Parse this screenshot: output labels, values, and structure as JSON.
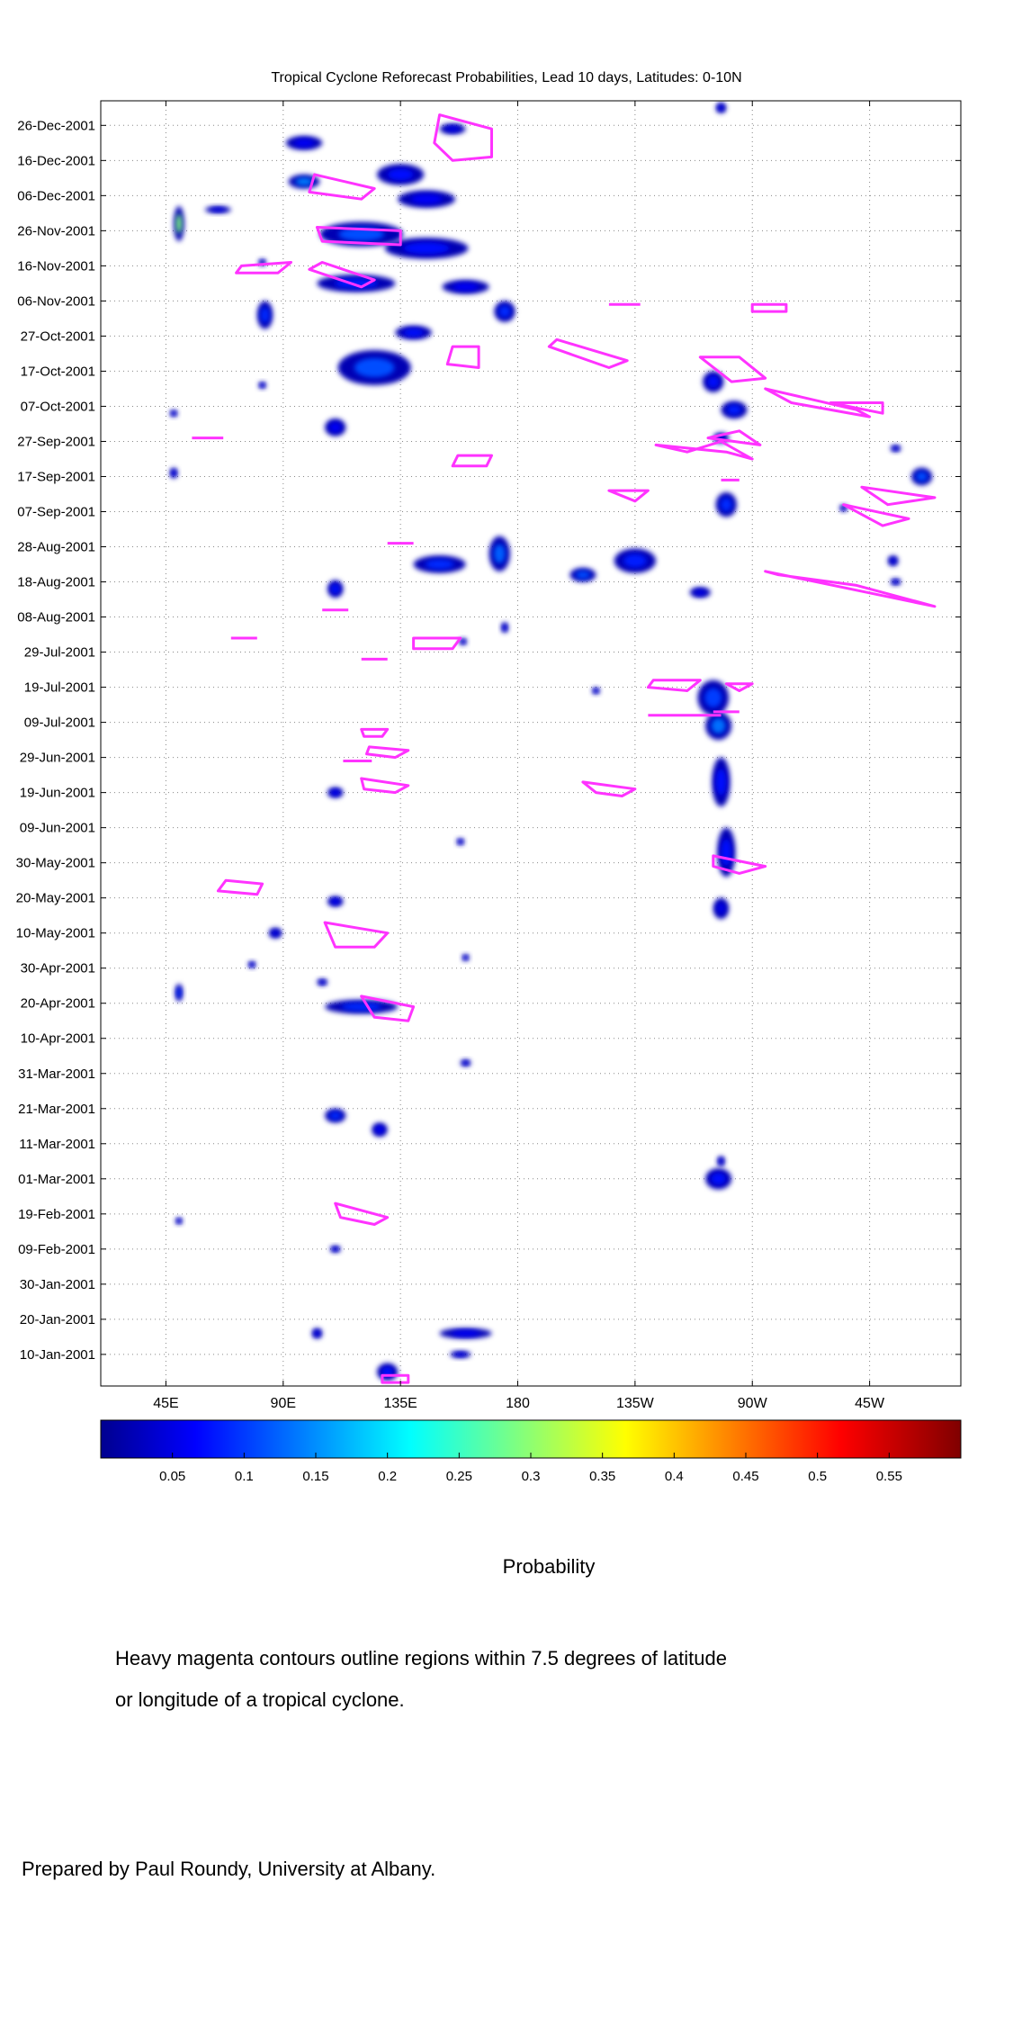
{
  "chart_data": {
    "type": "heatmap",
    "title": "Tropical Cyclone Reforecast Probabilities, Lead 10 days, Latitudes: 0-10N",
    "x_ticks": [
      "45E",
      "90E",
      "135E",
      "180",
      "135W",
      "90W",
      "45W"
    ],
    "x_tick_values": [
      45,
      90,
      135,
      180,
      225,
      270,
      315
    ],
    "xlim": [
      20,
      350
    ],
    "y_ticks": [
      "26-Dec-2001",
      "16-Dec-2001",
      "06-Dec-2001",
      "26-Nov-2001",
      "16-Nov-2001",
      "06-Nov-2001",
      "27-Oct-2001",
      "17-Oct-2001",
      "07-Oct-2001",
      "27-Sep-2001",
      "17-Sep-2001",
      "07-Sep-2001",
      "28-Aug-2001",
      "18-Aug-2001",
      "08-Aug-2001",
      "29-Jul-2001",
      "19-Jul-2001",
      "09-Jul-2001",
      "29-Jun-2001",
      "19-Jun-2001",
      "09-Jun-2001",
      "30-May-2001",
      "20-May-2001",
      "10-May-2001",
      "30-Apr-2001",
      "20-Apr-2001",
      "10-Apr-2001",
      "31-Mar-2001",
      "21-Mar-2001",
      "11-Mar-2001",
      "01-Mar-2001",
      "19-Feb-2001",
      "09-Feb-2001",
      "30-Jan-2001",
      "20-Jan-2001",
      "10-Jan-2001"
    ],
    "y_tick_values": [
      359,
      349,
      339,
      329,
      319,
      309,
      299,
      289,
      279,
      269,
      259,
      249,
      239,
      229,
      219,
      209,
      199,
      189,
      179,
      169,
      159,
      149,
      139,
      129,
      119,
      109,
      99,
      89,
      79,
      69,
      59,
      49,
      39,
      29,
      19,
      9
    ],
    "ylim": [
      0,
      366
    ],
    "grid": "dotted",
    "colorbar": {
      "label": "Probability",
      "ticks": [
        "0.05",
        "0.1",
        "0.15",
        "0.2",
        "0.25",
        "0.3",
        "0.35",
        "0.4",
        "0.45",
        "0.5",
        "0.55"
      ],
      "tick_values": [
        0.05,
        0.1,
        0.15,
        0.2,
        0.25,
        0.3,
        0.35,
        0.4,
        0.45,
        0.5,
        0.55
      ],
      "range": [
        0.0,
        0.6
      ],
      "colormap": "jet"
    },
    "probability_regions": [
      {
        "lon": 98,
        "day": 354,
        "dlon": 14,
        "dday": 4,
        "p": 0.07
      },
      {
        "lon": 135,
        "day": 345,
        "dlon": 18,
        "dday": 6,
        "p": 0.08
      },
      {
        "lon": 145,
        "day": 338,
        "dlon": 22,
        "dday": 5,
        "p": 0.07
      },
      {
        "lon": 155,
        "day": 358,
        "dlon": 10,
        "dday": 3,
        "p": 0.06
      },
      {
        "lon": 258,
        "day": 364,
        "dlon": 4,
        "dday": 3,
        "p": 0.06
      },
      {
        "lon": 50,
        "day": 331,
        "dlon": 4,
        "dday": 10,
        "p": 0.3
      },
      {
        "lon": 65,
        "day": 335,
        "dlon": 10,
        "dday": 2,
        "p": 0.06
      },
      {
        "lon": 98,
        "day": 343,
        "dlon": 12,
        "dday": 4,
        "p": 0.15
      },
      {
        "lon": 120,
        "day": 328,
        "dlon": 32,
        "dday": 7,
        "p": 0.12
      },
      {
        "lon": 145,
        "day": 324,
        "dlon": 32,
        "dday": 6,
        "p": 0.08
      },
      {
        "lon": 118,
        "day": 314,
        "dlon": 30,
        "dday": 5,
        "p": 0.09
      },
      {
        "lon": 160,
        "day": 313,
        "dlon": 18,
        "dday": 4,
        "p": 0.07
      },
      {
        "lon": 175,
        "day": 306,
        "dlon": 8,
        "dday": 6,
        "p": 0.1
      },
      {
        "lon": 83,
        "day": 305,
        "dlon": 6,
        "dday": 8,
        "p": 0.1
      },
      {
        "lon": 82,
        "day": 320,
        "dlon": 3,
        "dday": 2,
        "p": 0.06
      },
      {
        "lon": 125,
        "day": 290,
        "dlon": 28,
        "dday": 10,
        "p": 0.12
      },
      {
        "lon": 140,
        "day": 300,
        "dlon": 14,
        "dday": 4,
        "p": 0.08
      },
      {
        "lon": 110,
        "day": 273,
        "dlon": 8,
        "dday": 5,
        "p": 0.07
      },
      {
        "lon": 48,
        "day": 277,
        "dlon": 3,
        "dday": 2,
        "p": 0.06
      },
      {
        "lon": 82,
        "day": 285,
        "dlon": 3,
        "dday": 2,
        "p": 0.06
      },
      {
        "lon": 255,
        "day": 286,
        "dlon": 8,
        "dday": 6,
        "p": 0.08
      },
      {
        "lon": 263,
        "day": 278,
        "dlon": 10,
        "dday": 5,
        "p": 0.09
      },
      {
        "lon": 258,
        "day": 270,
        "dlon": 6,
        "dday": 3,
        "p": 0.06
      },
      {
        "lon": 325,
        "day": 267,
        "dlon": 4,
        "dday": 2,
        "p": 0.06
      },
      {
        "lon": 335,
        "day": 259,
        "dlon": 8,
        "dday": 5,
        "p": 0.12
      },
      {
        "lon": 48,
        "day": 260,
        "dlon": 3,
        "dday": 3,
        "p": 0.06
      },
      {
        "lon": 260,
        "day": 251,
        "dlon": 8,
        "dday": 7,
        "p": 0.1
      },
      {
        "lon": 305,
        "day": 250,
        "dlon": 3,
        "dday": 2,
        "p": 0.06
      },
      {
        "lon": 173,
        "day": 237,
        "dlon": 8,
        "dday": 10,
        "p": 0.13
      },
      {
        "lon": 150,
        "day": 234,
        "dlon": 20,
        "dday": 5,
        "p": 0.1
      },
      {
        "lon": 225,
        "day": 235,
        "dlon": 16,
        "dday": 7,
        "p": 0.09
      },
      {
        "lon": 205,
        "day": 231,
        "dlon": 10,
        "dday": 4,
        "p": 0.12
      },
      {
        "lon": 250,
        "day": 226,
        "dlon": 8,
        "dday": 3,
        "p": 0.06
      },
      {
        "lon": 110,
        "day": 227,
        "dlon": 6,
        "dday": 5,
        "p": 0.08
      },
      {
        "lon": 325,
        "day": 229,
        "dlon": 4,
        "dday": 2,
        "p": 0.06
      },
      {
        "lon": 324,
        "day": 235,
        "dlon": 4,
        "dday": 3,
        "p": 0.06
      },
      {
        "lon": 175,
        "day": 216,
        "dlon": 2,
        "dday": 3,
        "p": 0.06
      },
      {
        "lon": 159,
        "day": 212,
        "dlon": 3,
        "dday": 2,
        "p": 0.06
      },
      {
        "lon": 255,
        "day": 196,
        "dlon": 12,
        "dday": 10,
        "p": 0.11
      },
      {
        "lon": 257,
        "day": 188,
        "dlon": 10,
        "dday": 8,
        "p": 0.14
      },
      {
        "lon": 210,
        "day": 198,
        "dlon": 3,
        "dday": 2,
        "p": 0.06
      },
      {
        "lon": 258,
        "day": 172,
        "dlon": 7,
        "dday": 14,
        "p": 0.08
      },
      {
        "lon": 260,
        "day": 152,
        "dlon": 7,
        "dday": 14,
        "p": 0.08
      },
      {
        "lon": 258,
        "day": 136,
        "dlon": 6,
        "dday": 6,
        "p": 0.06
      },
      {
        "lon": 110,
        "day": 169,
        "dlon": 6,
        "dday": 3,
        "p": 0.07
      },
      {
        "lon": 158,
        "day": 155,
        "dlon": 3,
        "dday": 2,
        "p": 0.06
      },
      {
        "lon": 110,
        "day": 138,
        "dlon": 6,
        "dday": 3,
        "p": 0.07
      },
      {
        "lon": 87,
        "day": 129,
        "dlon": 5,
        "dday": 3,
        "p": 0.06
      },
      {
        "lon": 160,
        "day": 122,
        "dlon": 2,
        "dday": 2,
        "p": 0.06
      },
      {
        "lon": 78,
        "day": 120,
        "dlon": 3,
        "dday": 2,
        "p": 0.06
      },
      {
        "lon": 50,
        "day": 112,
        "dlon": 3,
        "dday": 5,
        "p": 0.1
      },
      {
        "lon": 120,
        "day": 108,
        "dlon": 28,
        "dday": 4,
        "p": 0.1
      },
      {
        "lon": 105,
        "day": 115,
        "dlon": 4,
        "dday": 2,
        "p": 0.06
      },
      {
        "lon": 160,
        "day": 92,
        "dlon": 4,
        "dday": 2,
        "p": 0.06
      },
      {
        "lon": 110,
        "day": 77,
        "dlon": 8,
        "dday": 4,
        "p": 0.1
      },
      {
        "lon": 127,
        "day": 73,
        "dlon": 6,
        "dday": 4,
        "p": 0.07
      },
      {
        "lon": 257,
        "day": 59,
        "dlon": 10,
        "dday": 6,
        "p": 0.08
      },
      {
        "lon": 258,
        "day": 64,
        "dlon": 3,
        "dday": 3,
        "p": 0.06
      },
      {
        "lon": 50,
        "day": 47,
        "dlon": 2,
        "dday": 2,
        "p": 0.06
      },
      {
        "lon": 110,
        "day": 39,
        "dlon": 4,
        "dday": 2,
        "p": 0.06
      },
      {
        "lon": 103,
        "day": 15,
        "dlon": 4,
        "dday": 3,
        "p": 0.06
      },
      {
        "lon": 160,
        "day": 15,
        "dlon": 20,
        "dday": 3,
        "p": 0.07
      },
      {
        "lon": 158,
        "day": 9,
        "dlon": 8,
        "dday": 2,
        "p": 0.06
      },
      {
        "lon": 130,
        "day": 4,
        "dlon": 8,
        "dday": 5,
        "p": 0.08
      }
    ],
    "tc_contours": [
      [
        [
          150,
          362
        ],
        [
          170,
          358
        ],
        [
          170,
          350
        ],
        [
          155,
          349
        ],
        [
          148,
          354
        ]
      ],
      [
        [
          102,
          345
        ],
        [
          125,
          341
        ],
        [
          120,
          338
        ],
        [
          100,
          340
        ]
      ],
      [
        [
          103,
          330
        ],
        [
          135,
          329
        ],
        [
          135,
          325
        ],
        [
          105,
          326
        ]
      ],
      [
        [
          74,
          319
        ],
        [
          93,
          320
        ],
        [
          88,
          317
        ],
        [
          72,
          317
        ]
      ],
      [
        [
          105,
          320
        ],
        [
          125,
          315
        ],
        [
          120,
          313
        ],
        [
          100,
          318
        ]
      ],
      [
        [
          250,
          293
        ],
        [
          265,
          293
        ],
        [
          275,
          287
        ],
        [
          262,
          286
        ]
      ],
      [
        [
          155,
          296
        ],
        [
          165,
          296
        ],
        [
          165,
          290
        ],
        [
          153,
          291
        ]
      ],
      [
        [
          195,
          298
        ],
        [
          222,
          292
        ],
        [
          215,
          290
        ],
        [
          192,
          296
        ]
      ],
      [
        [
          215,
          308
        ],
        [
          227,
          308
        ]
      ],
      [
        [
          270,
          308
        ],
        [
          283,
          308
        ],
        [
          283,
          306
        ],
        [
          270,
          306
        ]
      ],
      [
        [
          275,
          284
        ],
        [
          310,
          278
        ],
        [
          315,
          276
        ],
        [
          285,
          280
        ]
      ],
      [
        [
          300,
          280
        ],
        [
          320,
          280
        ],
        [
          320,
          277
        ]
      ],
      [
        [
          233,
          268
        ],
        [
          260,
          266
        ],
        [
          270,
          264
        ],
        [
          258,
          269
        ],
        [
          245,
          266
        ]
      ],
      [
        [
          253,
          270
        ],
        [
          265,
          272
        ],
        [
          273,
          268
        ]
      ],
      [
        [
          157,
          265
        ],
        [
          170,
          265
        ],
        [
          168,
          262
        ],
        [
          155,
          262
        ]
      ],
      [
        [
          55,
          270
        ],
        [
          67,
          270
        ]
      ],
      [
        [
          215,
          255
        ],
        [
          230,
          255
        ],
        [
          225,
          252
        ]
      ],
      [
        [
          258,
          258
        ],
        [
          265,
          258
        ]
      ],
      [
        [
          312,
          256
        ],
        [
          340,
          253
        ],
        [
          322,
          251
        ]
      ],
      [
        [
          305,
          251
        ],
        [
          330,
          247
        ],
        [
          320,
          245
        ]
      ],
      [
        [
          275,
          232
        ],
        [
          340,
          222
        ],
        [
          310,
          228
        ],
        [
          280,
          231
        ]
      ],
      [
        [
          140,
          213
        ],
        [
          158,
          213
        ],
        [
          155,
          210
        ],
        [
          140,
          210
        ]
      ],
      [
        [
          70,
          213
        ],
        [
          80,
          213
        ]
      ],
      [
        [
          120,
          207
        ],
        [
          130,
          207
        ]
      ],
      [
        [
          130,
          240
        ],
        [
          140,
          240
        ]
      ],
      [
        [
          105,
          221
        ],
        [
          115,
          221
        ]
      ],
      [
        [
          232,
          201
        ],
        [
          250,
          201
        ],
        [
          245,
          198
        ],
        [
          230,
          199
        ]
      ],
      [
        [
          260,
          200
        ],
        [
          270,
          200
        ],
        [
          265,
          198
        ]
      ],
      [
        [
          255,
          192
        ],
        [
          265,
          192
        ]
      ],
      [
        [
          230,
          191
        ],
        [
          258,
          191
        ]
      ],
      [
        [
          120,
          187
        ],
        [
          130,
          187
        ],
        [
          128,
          185
        ],
        [
          121,
          185
        ]
      ],
      [
        [
          123,
          182
        ],
        [
          138,
          181
        ],
        [
          133,
          179
        ],
        [
          122,
          180
        ]
      ],
      [
        [
          113,
          178
        ],
        [
          124,
          178
        ]
      ],
      [
        [
          205,
          172
        ],
        [
          225,
          170
        ],
        [
          220,
          168
        ],
        [
          210,
          169
        ]
      ],
      [
        [
          120,
          173
        ],
        [
          138,
          171
        ],
        [
          133,
          169
        ],
        [
          121,
          170
        ]
      ],
      [
        [
          255,
          151
        ],
        [
          275,
          148
        ],
        [
          265,
          146
        ],
        [
          255,
          148
        ]
      ],
      [
        [
          68,
          144
        ],
        [
          82,
          143
        ],
        [
          80,
          140
        ],
        [
          65,
          141
        ]
      ],
      [
        [
          106,
          132
        ],
        [
          130,
          129
        ],
        [
          125,
          125
        ],
        [
          110,
          125
        ]
      ],
      [
        [
          120,
          111
        ],
        [
          140,
          108
        ],
        [
          138,
          104
        ],
        [
          125,
          105
        ]
      ],
      [
        [
          128,
          3
        ],
        [
          138,
          3
        ],
        [
          138,
          1
        ],
        [
          128,
          1
        ]
      ],
      [
        [
          110,
          52
        ],
        [
          130,
          48
        ],
        [
          125,
          46
        ],
        [
          112,
          48
        ]
      ]
    ]
  },
  "axis_labels": {
    "colorbar_title": "Probability"
  },
  "notes": {
    "contour_note_line1": "Heavy magenta contours outline regions within 7.5 degrees of latitude",
    "contour_note_line2": "or longitude of a tropical cyclone.",
    "credit": "Prepared by Paul Roundy, University at Albany."
  },
  "colors": {
    "contour": "#ff33ff",
    "grid": "#888888",
    "axis": "#000000"
  }
}
